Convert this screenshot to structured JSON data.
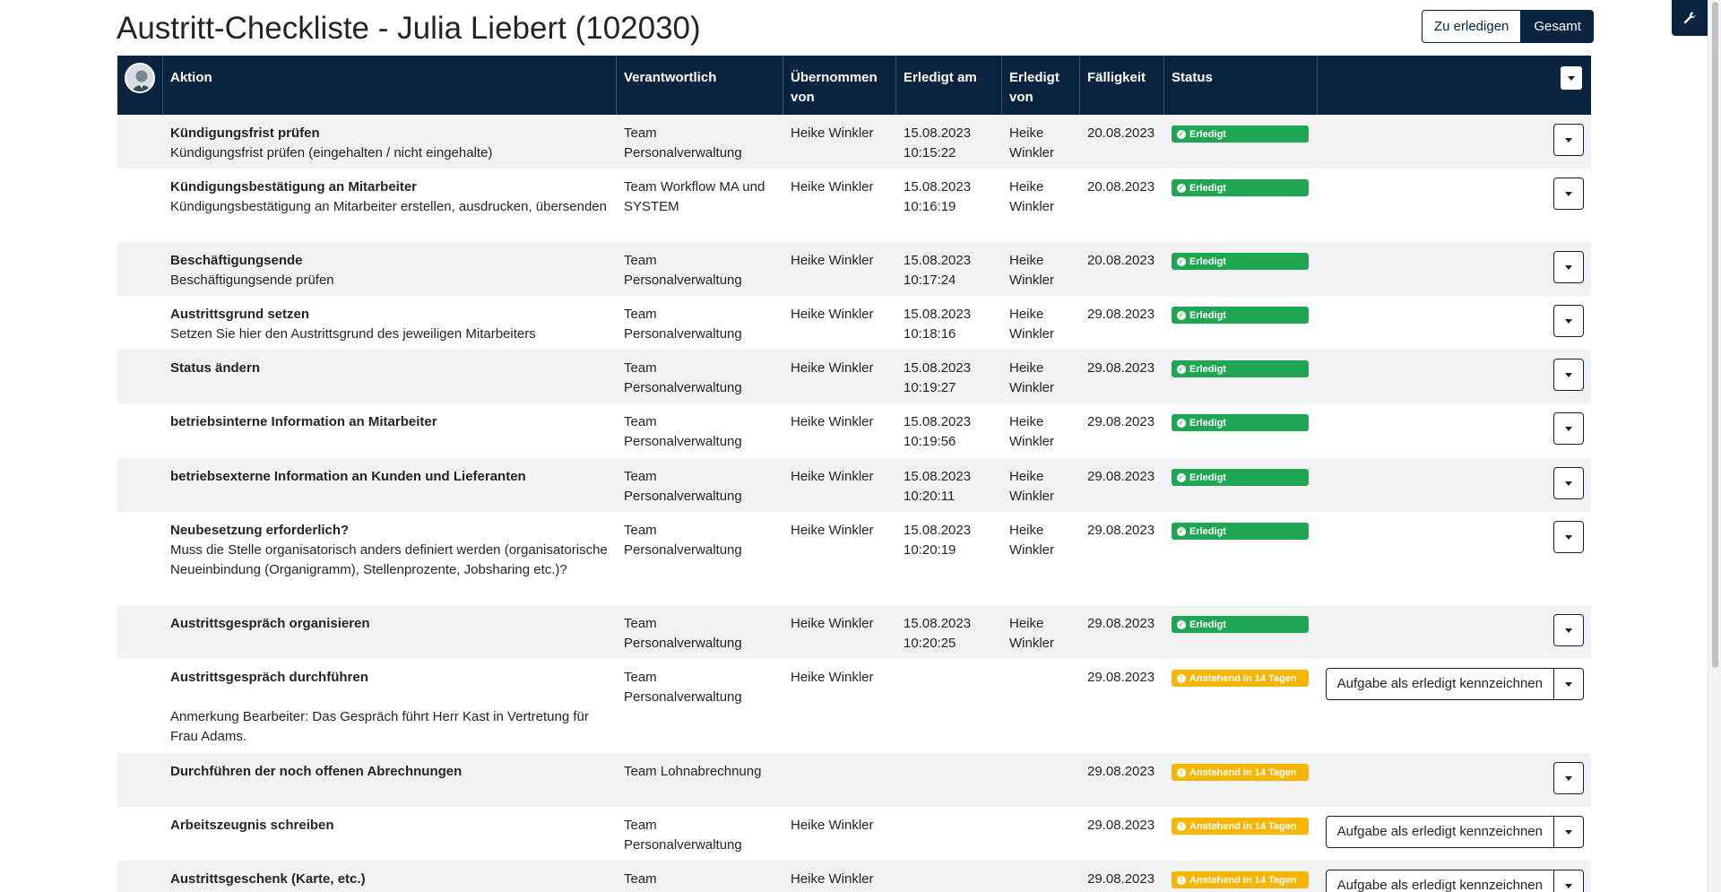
{
  "page": {
    "title": "Austritt-Checkliste - Julia Liebert (102030)"
  },
  "view_toggle": {
    "todo_label": "Zu erledigen",
    "all_label": "Gesamt"
  },
  "table": {
    "headers": {
      "aktion": "Aktion",
      "verantwortlich": "Verantwortlich",
      "uebernommen_1": "Übernommen",
      "uebernommen_2": "von",
      "erledigt_am": "Erledigt am",
      "erledigt_von_1": "Erledigt",
      "erledigt_von_2": "von",
      "faelligkeit": "Fälligkeit",
      "status": "Status"
    },
    "complete_button_label": "Aufgabe als erledigt kennzeichnen",
    "rows": [
      {
        "title": "Kündigungsfrist prüfen",
        "desc": "Kündigungsfrist prüfen (eingehalten / nicht eingehalte)",
        "note": "",
        "responsible_1": "Team",
        "responsible_2": "Personalverwaltung",
        "taken_by": "Heike Winkler",
        "done_date": "15.08.2023",
        "done_time": "10:15:22",
        "done_by_1": "Heike",
        "done_by_2": "Winkler",
        "due": "20.08.2023",
        "status": "Erledigt",
        "status_type": "done"
      },
      {
        "title": "Kündigungsbestätigung an Mitarbeiter",
        "desc": "Kündigungsbestätigung an Mitarbeiter erstellen, ausdrucken, übersenden",
        "note": "",
        "responsible_1": "Team Workflow MA und",
        "responsible_2": "SYSTEM",
        "taken_by": "Heike Winkler",
        "done_date": "15.08.2023",
        "done_time": "10:16:19",
        "done_by_1": "Heike",
        "done_by_2": "Winkler",
        "due": "20.08.2023",
        "status": "Erledigt",
        "status_type": "done"
      },
      {
        "title": "Beschäftigungsende",
        "desc": "Beschäftigungsende prüfen",
        "note": "",
        "responsible_1": "Team",
        "responsible_2": "Personalverwaltung",
        "taken_by": "Heike Winkler",
        "done_date": "15.08.2023",
        "done_time": "10:17:24",
        "done_by_1": "Heike",
        "done_by_2": "Winkler",
        "due": "20.08.2023",
        "status": "Erledigt",
        "status_type": "done"
      },
      {
        "title": "Austrittsgrund setzen",
        "desc": "Setzen Sie hier den Austrittsgrund des jeweiligen Mitarbeiters",
        "note": "",
        "responsible_1": "Team",
        "responsible_2": "Personalverwaltung",
        "taken_by": "Heike Winkler",
        "done_date": "15.08.2023",
        "done_time": "10:18:16",
        "done_by_1": "Heike",
        "done_by_2": "Winkler",
        "due": "29.08.2023",
        "status": "Erledigt",
        "status_type": "done"
      },
      {
        "title": "Status ändern",
        "desc": "",
        "note": "",
        "responsible_1": "Team",
        "responsible_2": "Personalverwaltung",
        "taken_by": "Heike Winkler",
        "done_date": "15.08.2023",
        "done_time": "10:19:27",
        "done_by_1": "Heike",
        "done_by_2": "Winkler",
        "due": "29.08.2023",
        "status": "Erledigt",
        "status_type": "done"
      },
      {
        "title": "betriebsinterne Information an Mitarbeiter",
        "desc": "",
        "note": "",
        "responsible_1": "Team",
        "responsible_2": "Personalverwaltung",
        "taken_by": "Heike Winkler",
        "done_date": "15.08.2023",
        "done_time": "10:19:56",
        "done_by_1": "Heike",
        "done_by_2": "Winkler",
        "due": "29.08.2023",
        "status": "Erledigt",
        "status_type": "done"
      },
      {
        "title": "betriebsexterne Information an Kunden und Lieferanten",
        "desc": "",
        "note": "",
        "responsible_1": "Team",
        "responsible_2": "Personalverwaltung",
        "taken_by": "Heike Winkler",
        "done_date": "15.08.2023",
        "done_time": "10:20:11",
        "done_by_1": "Heike",
        "done_by_2": "Winkler",
        "due": "29.08.2023",
        "status": "Erledigt",
        "status_type": "done"
      },
      {
        "title": "Neubesetzung erforderlich?",
        "desc": "Muss die Stelle organisatorisch anders definiert werden (organisatorische Neueinbindung (Organigramm), Stellenprozente, Jobsharing etc.)?",
        "note": "",
        "responsible_1": "Team",
        "responsible_2": "Personalverwaltung",
        "taken_by": "Heike Winkler",
        "done_date": "15.08.2023",
        "done_time": "10:20:19",
        "done_by_1": "Heike",
        "done_by_2": "Winkler",
        "due": "29.08.2023",
        "status": "Erledigt",
        "status_type": "done"
      },
      {
        "title": "Austrittsgespräch organisieren",
        "desc": "",
        "note": "",
        "responsible_1": "Team",
        "responsible_2": "Personalverwaltung",
        "taken_by": "Heike Winkler",
        "done_date": "15.08.2023",
        "done_time": "10:20:25",
        "done_by_1": "Heike",
        "done_by_2": "Winkler",
        "due": "29.08.2023",
        "status": "Erledigt",
        "status_type": "done"
      },
      {
        "title": "Austrittsgespräch durchführen",
        "desc": "",
        "note": "Anmerkung Bearbeiter: Das Gespräch führt Herr Kast in Vertretung für Frau Adams.",
        "responsible_1": "Team",
        "responsible_2": "Personalverwaltung",
        "taken_by": "Heike Winkler",
        "done_date": "",
        "done_time": "",
        "done_by_1": "",
        "done_by_2": "",
        "due": "29.08.2023",
        "status": "Anstehend in 14 Tagen",
        "status_type": "pending"
      },
      {
        "title": "Durchführen der noch offenen Abrechnungen",
        "desc": "",
        "note": "",
        "responsible_1": "Team Lohnabrechnung",
        "responsible_2": "",
        "taken_by": "",
        "done_date": "",
        "done_time": "",
        "done_by_1": "",
        "done_by_2": "",
        "due": "29.08.2023",
        "status": "Anstehend in 14 Tagen",
        "status_type": "pending"
      },
      {
        "title": "Arbeitszeugnis schreiben",
        "desc": "",
        "note": "",
        "responsible_1": "Team",
        "responsible_2": "Personalverwaltung",
        "taken_by": "Heike Winkler",
        "done_date": "",
        "done_time": "",
        "done_by_1": "",
        "done_by_2": "",
        "due": "29.08.2023",
        "status": "Anstehend in 14 Tagen",
        "status_type": "pending"
      },
      {
        "title": "Austrittsgeschenk (Karte, etc.)",
        "desc": "",
        "note": "",
        "responsible_1": "Team",
        "responsible_2": "",
        "taken_by": "Heike Winkler",
        "done_date": "",
        "done_time": "",
        "done_by_1": "",
        "done_by_2": "",
        "due": "29.08.2023",
        "status": "Anstehend in 14 Tagen",
        "status_type": "pending"
      }
    ]
  },
  "colors": {
    "navy": "#0a2440",
    "done_green": "#1ea652",
    "pending_amber": "#f7b500",
    "row_alt": "#f2f2f2"
  },
  "icons": {
    "corner_tool": "wrench-icon",
    "dropdown": "caret-down-icon",
    "done_status": "check-circle-icon",
    "pending_status": "exclamation-circle-icon",
    "avatar": "user-avatar"
  }
}
